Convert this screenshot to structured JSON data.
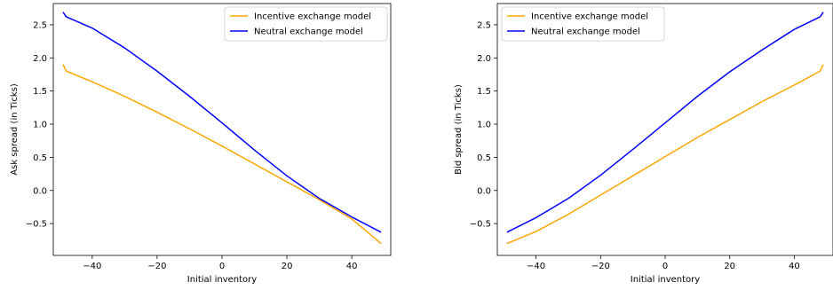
{
  "chart_data": [
    {
      "type": "line",
      "xlabel": "Initial inventory",
      "ylabel": "Ask spread (in Ticks)",
      "xlim": [
        -52,
        52
      ],
      "ylim": [
        -0.98,
        2.82
      ],
      "xticks": [
        -40,
        -20,
        0,
        20,
        40
      ],
      "yticks": [
        -0.5,
        0.0,
        0.5,
        1.0,
        1.5,
        2.0,
        2.5
      ],
      "xtick_labels": [
        "−40",
        "−20",
        "0",
        "20",
        "40"
      ],
      "ytick_labels": [
        "−0.5",
        "0.0",
        "0.5",
        "1.0",
        "1.5",
        "2.0",
        "2.5"
      ],
      "legend_position": "upper right",
      "grid": false,
      "series": [
        {
          "name": "Incentive exchange model",
          "color": "#ffa500",
          "points": [
            [
              -49,
              1.9
            ],
            [
              -48,
              1.8
            ],
            [
              -40,
              1.64
            ],
            [
              -30,
              1.42
            ],
            [
              -20,
              1.18
            ],
            [
              -10,
              0.93
            ],
            [
              0,
              0.67
            ],
            [
              10,
              0.4
            ],
            [
              20,
              0.13
            ],
            [
              30,
              -0.14
            ],
            [
              40,
              -0.43
            ],
            [
              49,
              -0.8
            ]
          ]
        },
        {
          "name": "Neutral exchange model",
          "color": "#0000ff",
          "points": [
            [
              -49,
              2.69
            ],
            [
              -48,
              2.62
            ],
            [
              -40,
              2.45
            ],
            [
              -30,
              2.15
            ],
            [
              -20,
              1.8
            ],
            [
              -10,
              1.42
            ],
            [
              0,
              1.02
            ],
            [
              10,
              0.61
            ],
            [
              20,
              0.22
            ],
            [
              30,
              -0.12
            ],
            [
              40,
              -0.4
            ],
            [
              49,
              -0.63
            ]
          ]
        }
      ]
    },
    {
      "type": "line",
      "xlabel": "Initial inventory",
      "ylabel": "Bid spread (in Ticks)",
      "xlim": [
        -52,
        52
      ],
      "ylim": [
        -0.98,
        2.82
      ],
      "xticks": [
        -40,
        -20,
        0,
        20,
        40
      ],
      "yticks": [
        -0.5,
        0.0,
        0.5,
        1.0,
        1.5,
        2.0,
        2.5
      ],
      "xtick_labels": [
        "−40",
        "−20",
        "0",
        "20",
        "40"
      ],
      "ytick_labels": [
        "−0.5",
        "0.0",
        "0.5",
        "1.0",
        "1.5",
        "2.0",
        "2.5"
      ],
      "legend_position": "upper left",
      "grid": false,
      "series": [
        {
          "name": "Incentive exchange model",
          "color": "#ffa500",
          "points": [
            [
              -49,
              -0.8
            ],
            [
              -40,
              -0.62
            ],
            [
              -30,
              -0.36
            ],
            [
              -20,
              -0.07
            ],
            [
              -10,
              0.22
            ],
            [
              0,
              0.51
            ],
            [
              10,
              0.8
            ],
            [
              20,
              1.07
            ],
            [
              30,
              1.34
            ],
            [
              40,
              1.59
            ],
            [
              48,
              1.8
            ],
            [
              49,
              1.9
            ]
          ]
        },
        {
          "name": "Neutral exchange model",
          "color": "#0000ff",
          "points": [
            [
              -49,
              -0.63
            ],
            [
              -40,
              -0.41
            ],
            [
              -30,
              -0.12
            ],
            [
              -20,
              0.23
            ],
            [
              -10,
              0.62
            ],
            [
              0,
              1.02
            ],
            [
              10,
              1.42
            ],
            [
              20,
              1.79
            ],
            [
              30,
              2.12
            ],
            [
              40,
              2.43
            ],
            [
              48,
              2.62
            ],
            [
              49,
              2.69
            ]
          ]
        }
      ]
    }
  ]
}
